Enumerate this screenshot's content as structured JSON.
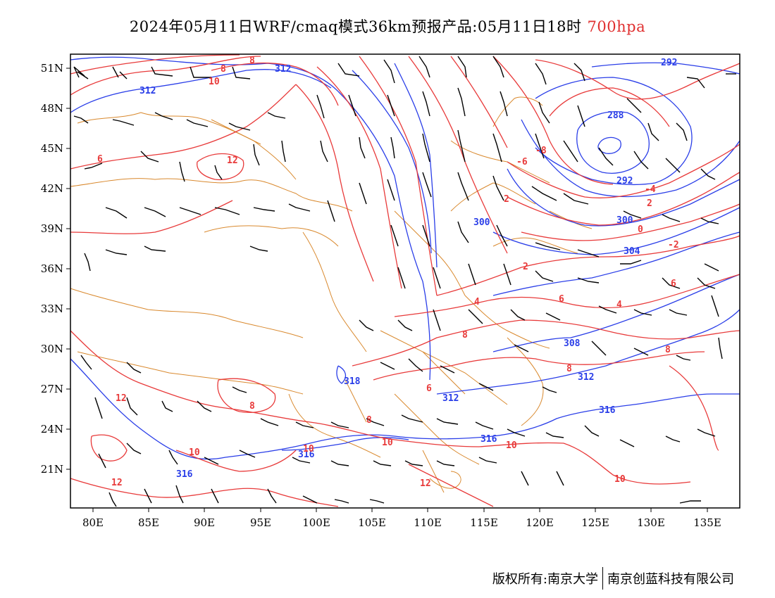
{
  "title": {
    "main": "2024年05月11日WRF/cmaq模式36km预报产品:05月11日18时",
    "level": "700hpa"
  },
  "axes": {
    "lat_labels": [
      "51N",
      "48N",
      "45N",
      "42N",
      "39N",
      "36N",
      "33N",
      "30N",
      "27N",
      "24N",
      "21N"
    ],
    "lon_labels": [
      "80E",
      "85E",
      "90E",
      "95E",
      "100E",
      "105E",
      "110E",
      "115E",
      "120E",
      "125E",
      "130E",
      "135E"
    ]
  },
  "colors": {
    "height_contour": "#2a3ee8",
    "temperature_contour": "#e83a3a",
    "border": "#d9892e",
    "wind_barb": "#000000"
  },
  "contour_labels": {
    "height": [
      "312",
      "312",
      "292",
      "288",
      "292",
      "300",
      "300",
      "304",
      "308",
      "312",
      "316",
      "312",
      "316",
      "316",
      "316",
      "318"
    ],
    "temperature": [
      "8",
      "8",
      "10",
      "12",
      "-6",
      "-8",
      "6",
      "-4",
      "2",
      "0",
      "-2",
      "2",
      "2",
      "4",
      "6",
      "4",
      "6",
      "8",
      "8",
      "8",
      "6",
      "8",
      "12",
      "10",
      "10",
      "10",
      "10",
      "12",
      "12",
      "8"
    ]
  },
  "footer": {
    "left": "版权所有:南京大学",
    "right": "南京创蓝科技有限公司"
  }
}
